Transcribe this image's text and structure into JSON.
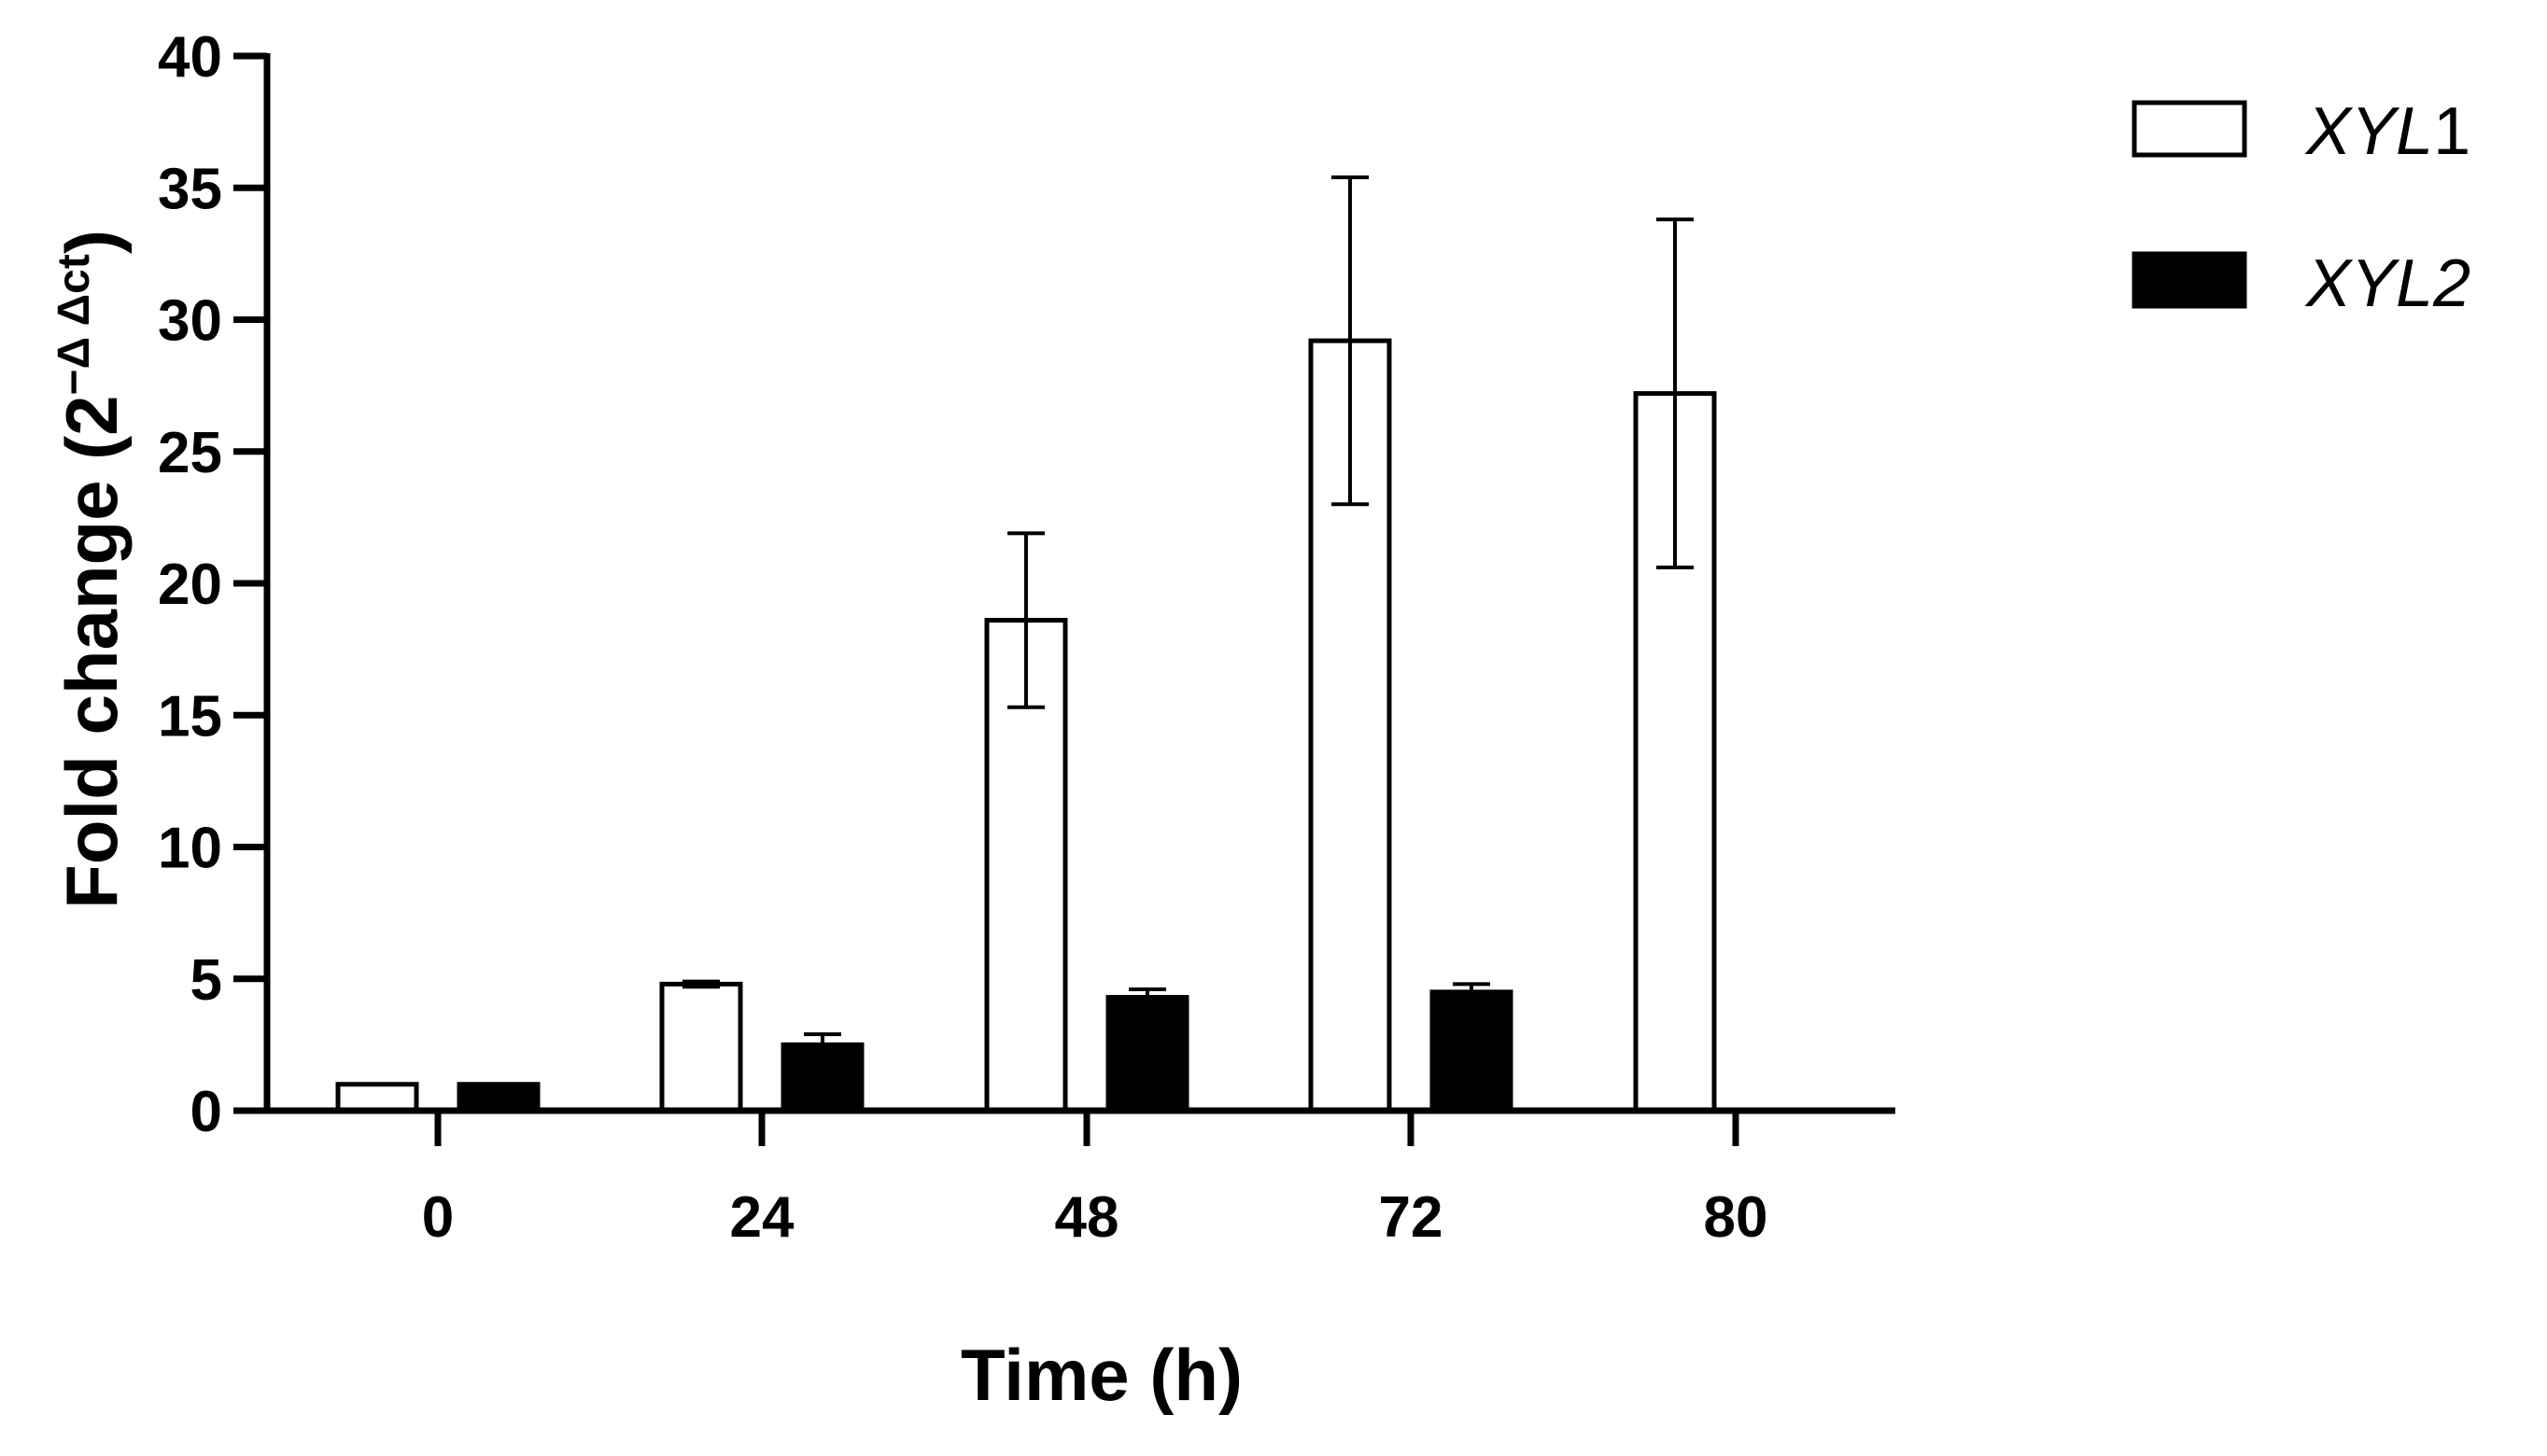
{
  "chart_data": {
    "type": "bar",
    "xlabel": "Time (h)",
    "ylabel": {
      "main": "Fold change (2",
      "superscript": "−Δ Δct",
      "close": ")"
    },
    "categories": [
      "0",
      "24",
      "48",
      "72",
      "80"
    ],
    "ylim": [
      0,
      40
    ],
    "yticks": [
      0,
      5,
      10,
      15,
      20,
      25,
      30,
      35,
      40
    ],
    "grid": false,
    "legend_position": "top-right",
    "series": [
      {
        "name": "XYL1",
        "name_italic": "XYL",
        "name_plain": "1",
        "fill": "#ffffff",
        "values": [
          1.0,
          4.8,
          18.6,
          29.2,
          27.2
        ],
        "errors": [
          0.0,
          0.1,
          3.3,
          6.2,
          6.6
        ]
      },
      {
        "name": "XYL2",
        "name_italic": "XYL2",
        "name_plain": "",
        "fill": "#000000",
        "values": [
          1.0,
          2.5,
          4.3,
          4.5,
          null
        ],
        "errors": [
          0.0,
          0.4,
          0.3,
          0.3,
          null
        ]
      }
    ],
    "colors": {
      "axis": "#000000",
      "outline": "#000000"
    }
  }
}
